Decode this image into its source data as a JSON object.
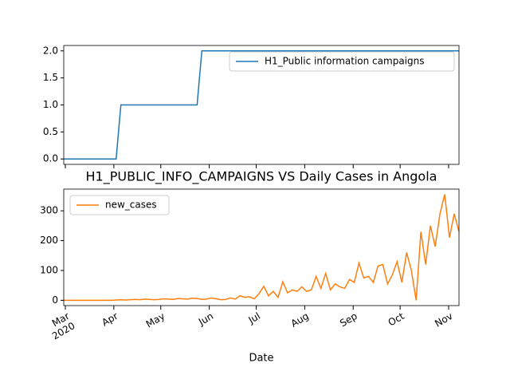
{
  "chart_data": [
    {
      "type": "line",
      "series": [
        {
          "name": "H1_Public information campaigns",
          "color": "#1f77b4",
          "values": [
            0,
            0,
            0,
            0,
            0,
            0,
            0,
            0,
            0,
            0,
            0,
            0,
            1,
            1,
            1,
            1,
            1,
            1,
            1,
            1,
            1,
            1,
            1,
            1,
            1,
            1,
            1,
            1,
            1,
            2,
            2,
            2,
            2,
            2,
            2,
            2,
            2,
            2,
            2,
            2,
            2,
            2,
            2,
            2,
            2,
            2,
            2,
            2,
            2,
            2,
            2,
            2,
            2,
            2,
            2,
            2,
            2,
            2,
            2,
            2,
            2,
            2,
            2,
            2,
            2,
            2,
            2,
            2,
            2,
            2,
            2,
            2,
            2,
            2,
            2,
            2,
            2,
            2,
            2,
            2,
            2,
            2,
            2,
            2
          ]
        }
      ],
      "ylim": [
        -0.1,
        2.1
      ],
      "yticks": [
        {
          "value": 0,
          "label": "0.0"
        },
        {
          "value": 0.5,
          "label": "0.5"
        },
        {
          "value": 1,
          "label": "1.0"
        },
        {
          "value": 1.5,
          "label": "1.5"
        },
        {
          "value": 2,
          "label": "2.0"
        }
      ],
      "legend": "upper right"
    },
    {
      "type": "line",
      "title": "H1_PUBLIC_INFO_CAMPAIGNS VS Daily Cases in Angola",
      "xlabel": "Date",
      "series": [
        {
          "name": "new_cases",
          "color": "#ff7f0e",
          "values": [
            0,
            0,
            0,
            0,
            0,
            0,
            0,
            0,
            0,
            0,
            0,
            1,
            2,
            1,
            2,
            3,
            2,
            4,
            3,
            2,
            3,
            5,
            4,
            3,
            6,
            5,
            4,
            7,
            6,
            3,
            4,
            8,
            5,
            2,
            3,
            8,
            4,
            15,
            10,
            12,
            5,
            22,
            47,
            15,
            30,
            10,
            62,
            25,
            35,
            30,
            45,
            30,
            35,
            80,
            40,
            90,
            35,
            55,
            45,
            40,
            70,
            60,
            125,
            75,
            80,
            60,
            115,
            120,
            55,
            85,
            130,
            60,
            160,
            100,
            0,
            230,
            120,
            250,
            180,
            290,
            355,
            210,
            290,
            230
          ]
        }
      ],
      "xticks": [
        {
          "value": "2020-03",
          "label": "Mar\n2020"
        },
        {
          "value": "2020-04",
          "label": "Apr"
        },
        {
          "value": "2020-05",
          "label": "May"
        },
        {
          "value": "2020-06",
          "label": "Jun"
        },
        {
          "value": "2020-07",
          "label": "Jul"
        },
        {
          "value": "2020-08",
          "label": "Aug"
        },
        {
          "value": "2020-09",
          "label": "Sep"
        },
        {
          "value": "2020-10",
          "label": "Oct"
        },
        {
          "value": "2020-11",
          "label": "Nov"
        }
      ],
      "ylim": [
        -17.75,
        372.75
      ],
      "yticks": [
        0,
        100,
        200,
        300
      ],
      "legend": "upper left"
    }
  ]
}
